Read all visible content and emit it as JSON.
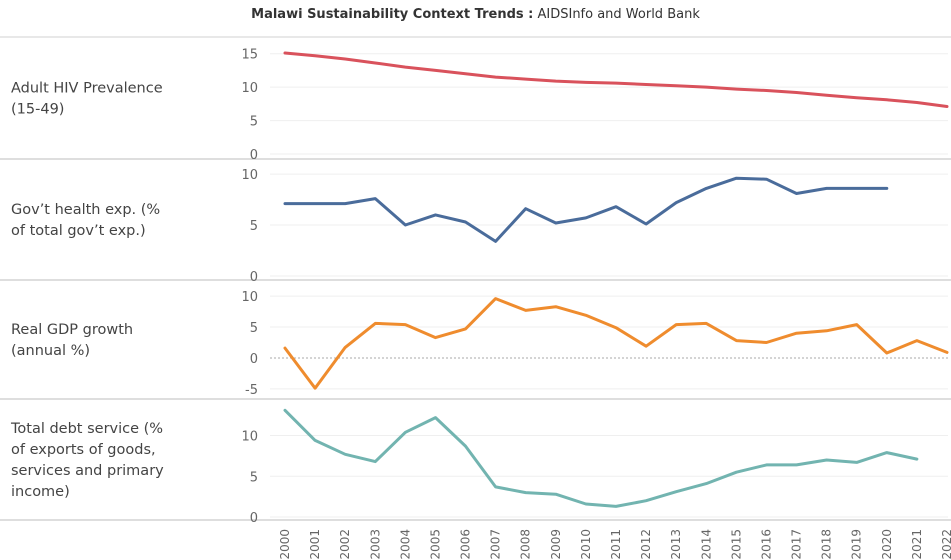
{
  "title": {
    "bold": "Malawi Sustainability Context Trends :",
    "rest": " AIDSInfo and World Bank"
  },
  "chart_data": {
    "type": "line",
    "x": [
      2000,
      2001,
      2002,
      2003,
      2004,
      2005,
      2006,
      2007,
      2008,
      2009,
      2010,
      2011,
      2012,
      2013,
      2014,
      2015,
      2016,
      2017,
      2018,
      2019,
      2020,
      2021,
      2022
    ],
    "x_tick_labels": [
      "2000",
      "2001",
      "2002",
      "2003",
      "2004",
      "2005",
      "2006",
      "2007",
      "2008",
      "2009",
      "2010",
      "2011",
      "2012",
      "2013",
      "2014",
      "2015",
      "2016",
      "2017",
      "2018",
      "2019",
      "2020",
      "2021",
      "2022"
    ],
    "panels": [
      {
        "label": [
          "Adult HIV Prevalence",
          "(15-49)"
        ],
        "color": "#d9525c",
        "ylim": [
          0,
          16
        ],
        "ticks": [
          0,
          5,
          10,
          15
        ],
        "tick_labels": [
          "0",
          "5",
          "10",
          "15"
        ],
        "zero_line": false,
        "values": [
          15.1,
          14.7,
          14.2,
          13.6,
          13.0,
          12.5,
          12.0,
          11.5,
          11.2,
          10.9,
          10.7,
          10.6,
          10.4,
          10.2,
          10.0,
          9.7,
          9.5,
          9.2,
          8.8,
          8.4,
          8.1,
          7.7,
          7.1
        ]
      },
      {
        "label": [
          "Gov’t health exp. (%",
          "of total gov’t exp.)"
        ],
        "color": "#4a6c9b",
        "ylim": [
          0,
          10.5
        ],
        "ticks": [
          0,
          5,
          10
        ],
        "tick_labels": [
          "0",
          "5",
          "10"
        ],
        "zero_line": false,
        "values": [
          7.1,
          7.1,
          7.1,
          7.6,
          5.0,
          6.0,
          5.3,
          3.4,
          6.6,
          5.2,
          5.7,
          6.8,
          5.1,
          7.2,
          8.6,
          9.6,
          9.5,
          8.1,
          8.6,
          8.6,
          8.6,
          null,
          null
        ]
      },
      {
        "label": [
          "Real GDP growth",
          "(annual %)"
        ],
        "color": "#ef8c2e",
        "ylim": [
          -6,
          11
        ],
        "ticks": [
          -5,
          0,
          5,
          10
        ],
        "tick_labels": [
          "-5",
          "0",
          "5",
          "10"
        ],
        "zero_line": true,
        "values": [
          1.6,
          -4.9,
          1.7,
          5.6,
          5.4,
          3.3,
          4.7,
          9.6,
          7.7,
          8.3,
          6.9,
          4.9,
          1.9,
          5.4,
          5.6,
          2.8,
          2.5,
          4.0,
          4.4,
          5.4,
          0.8,
          2.8,
          0.9
        ]
      },
      {
        "label": [
          "Total debt service (%",
          "of exports of goods,",
          "services and primary",
          "income)"
        ],
        "color": "#72b4b0",
        "ylim": [
          0,
          13.5
        ],
        "ticks": [
          0,
          5,
          10
        ],
        "tick_labels": [
          "0",
          "5",
          "10"
        ],
        "zero_line": false,
        "values": [
          13.1,
          9.4,
          7.7,
          6.8,
          10.4,
          12.2,
          8.7,
          3.7,
          3.0,
          2.8,
          1.6,
          1.3,
          2.0,
          3.1,
          4.1,
          5.5,
          6.4,
          6.4,
          7.0,
          6.7,
          7.9,
          7.1,
          null
        ]
      }
    ]
  }
}
